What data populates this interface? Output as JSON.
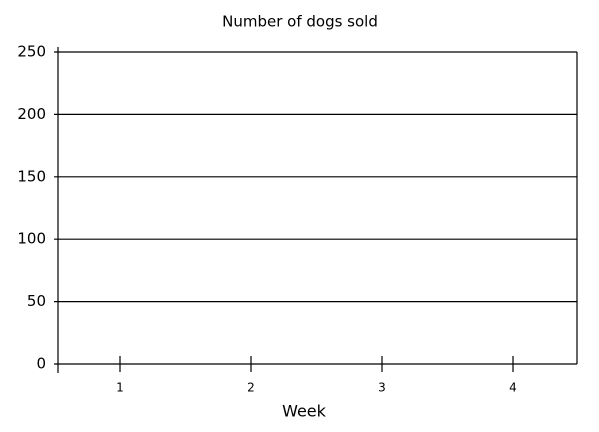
{
  "chart_data": {
    "type": "bar",
    "title": "Number of dogs sold",
    "x_label": "Week",
    "categories": [
      "1",
      "2",
      "3",
      "4"
    ],
    "ylim": [
      0,
      250
    ],
    "yticks": [
      0,
      50,
      100,
      150,
      200,
      250
    ],
    "grid": true
  }
}
